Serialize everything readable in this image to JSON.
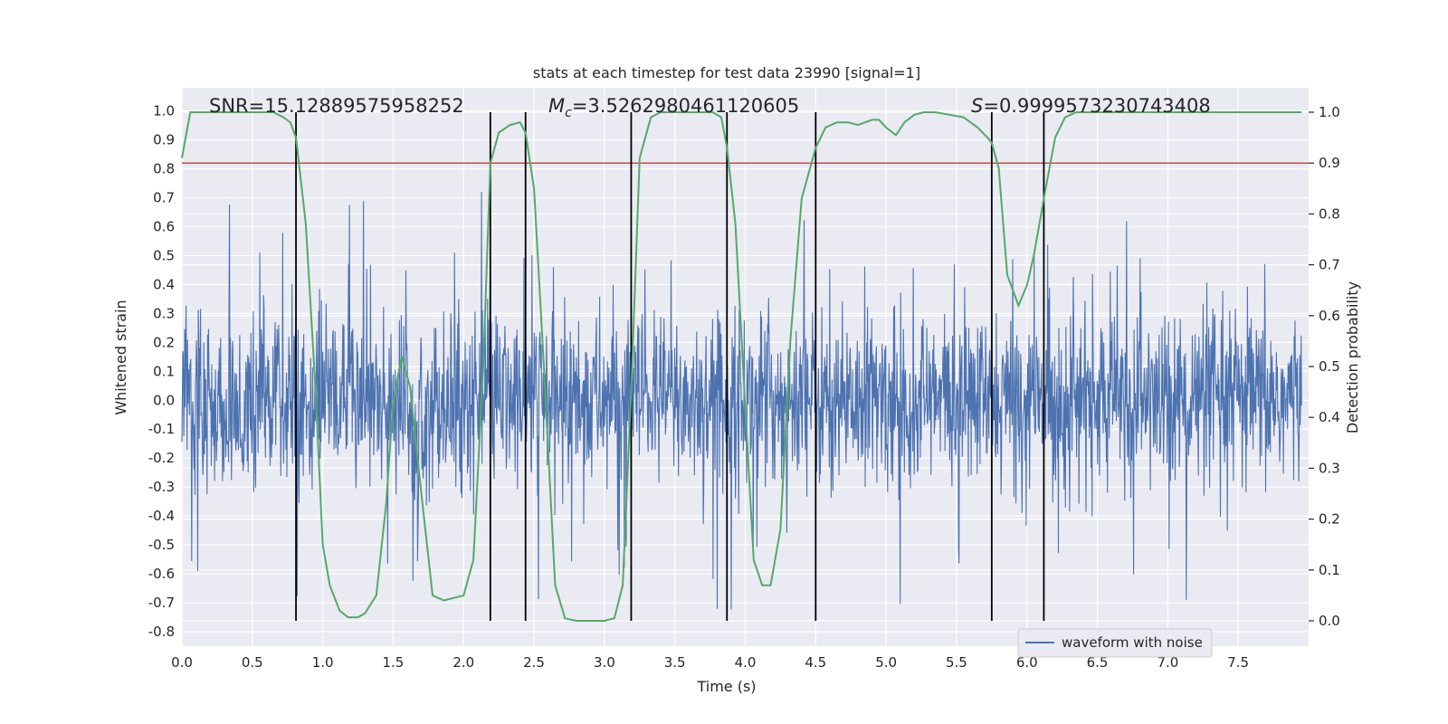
{
  "chart_data": {
    "type": "line",
    "title": "stats at each timestep for test data 23990 [signal=1]",
    "xlabel": "Time (s)",
    "ylabel_left": "Whitened strain",
    "ylabel_right": "Detection probability",
    "xlim": [
      0.0,
      8.0
    ],
    "ylim_left": [
      -0.85,
      1.08
    ],
    "ylim_right": [
      0.0,
      1.0
    ],
    "x_ticks": [
      "0.0",
      "0.5",
      "1.0",
      "1.5",
      "2.0",
      "2.5",
      "3.0",
      "3.5",
      "4.0",
      "4.5",
      "5.0",
      "5.5",
      "6.0",
      "6.5",
      "7.0",
      "7.5"
    ],
    "y_left_ticks": [
      "-0.8",
      "-0.7",
      "-0.6",
      "-0.5",
      "-0.4",
      "-0.3",
      "-0.2",
      "-0.1",
      "0.0",
      "0.1",
      "0.2",
      "0.3",
      "0.4",
      "0.5",
      "0.6",
      "0.7",
      "0.8",
      "0.9",
      "1.0"
    ],
    "y_right_ticks": [
      "0.0",
      "0.1",
      "0.2",
      "0.3",
      "0.4",
      "0.5",
      "0.6",
      "0.7",
      "0.8",
      "0.9",
      "1.0"
    ],
    "grid": true,
    "legend_position": "lower-right",
    "annotations": {
      "snr": "SNR=15.12889575958252",
      "mc_symbol": "M",
      "mc_sub": "c",
      "mc_value": "=3.5262980461120605",
      "s_symbol": "S",
      "s_value": "=0.9999573230743408"
    },
    "threshold": {
      "value": 0.9,
      "axis": "right",
      "color": "#c44e52"
    },
    "vertical_lines": [
      0.81,
      2.19,
      2.44,
      3.19,
      3.87,
      4.5,
      5.75,
      6.12
    ],
    "series": [
      {
        "name": "waveform with noise",
        "axis": "left",
        "color": "#4c72b0",
        "noise_core_std": 0.15,
        "noise_peak_range": [
          -0.77,
          0.75
        ]
      },
      {
        "axis": "right",
        "color": "#55a868",
        "x": [
          0.0,
          0.06,
          0.12,
          0.25,
          0.4,
          0.55,
          0.65,
          0.72,
          0.77,
          0.81,
          0.88,
          0.95,
          1.0,
          1.05,
          1.12,
          1.18,
          1.25,
          1.3,
          1.38,
          1.45,
          1.5,
          1.56,
          1.62,
          1.7,
          1.78,
          1.86,
          1.93,
          2.0,
          2.07,
          2.14,
          2.19,
          2.25,
          2.33,
          2.4,
          2.44,
          2.5,
          2.57,
          2.65,
          2.72,
          2.8,
          2.9,
          3.0,
          3.07,
          3.13,
          3.19,
          3.25,
          3.33,
          3.4,
          3.5,
          3.6,
          3.7,
          3.77,
          3.83,
          3.87,
          3.93,
          4.0,
          4.06,
          4.12,
          4.18,
          4.25,
          4.32,
          4.4,
          4.5,
          4.57,
          4.65,
          4.73,
          4.8,
          4.9,
          4.95,
          5.0,
          5.07,
          5.13,
          5.2,
          5.27,
          5.35,
          5.45,
          5.55,
          5.65,
          5.72,
          5.75,
          5.8,
          5.86,
          5.94,
          6.0,
          6.05,
          6.12,
          6.2,
          6.27,
          6.35,
          6.5,
          7.0,
          7.5,
          7.95
        ],
        "values": [
          0.91,
          1.0,
          1.0,
          1.0,
          1.0,
          1.0,
          1.0,
          0.99,
          0.98,
          0.95,
          0.78,
          0.45,
          0.15,
          0.07,
          0.02,
          0.007,
          0.007,
          0.015,
          0.05,
          0.23,
          0.43,
          0.52,
          0.46,
          0.25,
          0.05,
          0.04,
          0.045,
          0.05,
          0.12,
          0.5,
          0.9,
          0.96,
          0.975,
          0.98,
          0.96,
          0.85,
          0.5,
          0.07,
          0.005,
          0.0,
          0.0,
          0.0,
          0.005,
          0.07,
          0.45,
          0.91,
          0.99,
          1.0,
          1.0,
          1.0,
          1.0,
          1.0,
          0.99,
          0.93,
          0.78,
          0.42,
          0.12,
          0.07,
          0.07,
          0.18,
          0.55,
          0.83,
          0.93,
          0.97,
          0.98,
          0.98,
          0.975,
          0.985,
          0.985,
          0.97,
          0.955,
          0.98,
          0.995,
          1.0,
          1.0,
          0.995,
          0.99,
          0.97,
          0.95,
          0.94,
          0.89,
          0.68,
          0.62,
          0.66,
          0.72,
          0.83,
          0.95,
          0.99,
          1.0,
          1.0,
          1.0,
          1.0,
          1.0
        ]
      }
    ]
  }
}
